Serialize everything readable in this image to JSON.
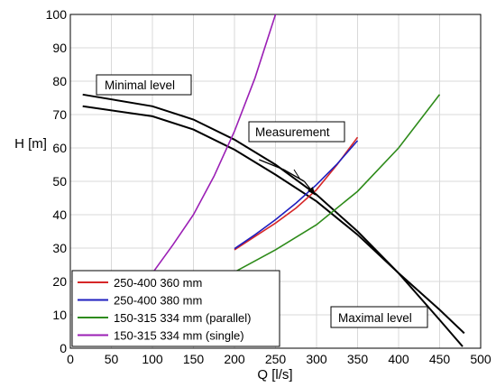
{
  "chart_data": {
    "type": "line",
    "xlabel": "Q [l/s]",
    "ylabel": "H [m]",
    "xlim": [
      0,
      500
    ],
    "ylim": [
      0,
      100
    ],
    "x_ticks": [
      0,
      50,
      100,
      150,
      200,
      250,
      300,
      350,
      400,
      450,
      500
    ],
    "y_ticks": [
      0,
      10,
      20,
      30,
      40,
      50,
      60,
      70,
      80,
      90,
      100
    ],
    "grid": true,
    "legend_position": "bottom-left",
    "series": [
      {
        "name": "250-400 360 mm",
        "color": "#d62728",
        "points": [
          [
            200,
            29.5
          ],
          [
            225,
            33.5
          ],
          [
            250,
            37.5
          ],
          [
            275,
            42
          ],
          [
            300,
            47.5
          ],
          [
            325,
            55
          ],
          [
            350,
            63.2
          ]
        ]
      },
      {
        "name": "250-400 380 mm",
        "color": "#1f1fbf",
        "points": [
          [
            200,
            29.8
          ],
          [
            225,
            34
          ],
          [
            250,
            38.5
          ],
          [
            275,
            43.5
          ],
          [
            300,
            49
          ],
          [
            325,
            55.2
          ],
          [
            350,
            62.2
          ]
        ]
      },
      {
        "name": "150-315 334 mm (parallel)",
        "color": "#2e8b1a",
        "points": [
          [
            200,
            22.8
          ],
          [
            250,
            29.5
          ],
          [
            300,
            37
          ],
          [
            350,
            47
          ],
          [
            400,
            60
          ],
          [
            450,
            76
          ]
        ]
      },
      {
        "name": "150-315 334 mm (single)",
        "color": "#9b1fb5",
        "points": [
          [
            100,
            22.5
          ],
          [
            125,
            31
          ],
          [
            150,
            40
          ],
          [
            175,
            51.5
          ],
          [
            200,
            65
          ],
          [
            225,
            81
          ],
          [
            250,
            100
          ]
        ]
      }
    ],
    "system_curves": [
      {
        "color": "#000000",
        "points": [
          [
            15,
            76
          ],
          [
            100,
            72.5
          ],
          [
            150,
            68.5
          ],
          [
            200,
            62.5
          ],
          [
            250,
            55
          ],
          [
            300,
            46
          ],
          [
            350,
            35
          ],
          [
            400,
            22.5
          ],
          [
            450,
            8.5
          ],
          [
            478,
            0.5
          ]
        ]
      },
      {
        "color": "#000000",
        "points": [
          [
            15,
            72.5
          ],
          [
            100,
            69.5
          ],
          [
            150,
            65.5
          ],
          [
            200,
            59.5
          ],
          [
            250,
            52
          ],
          [
            300,
            44
          ],
          [
            350,
            34
          ],
          [
            400,
            22.5
          ],
          [
            450,
            11.5
          ],
          [
            480,
            4.5
          ]
        ]
      }
    ],
    "measurement": {
      "color": "#000000",
      "points": [
        [
          230,
          56.5
        ],
        [
          260,
          53.5
        ],
        [
          285,
          50
        ]
      ],
      "arrow_to": [
        298,
        46
      ]
    },
    "annotations": [
      {
        "text": "Minimal level"
      },
      {
        "text": "Measurement"
      },
      {
        "text": "Maximal level"
      }
    ]
  }
}
